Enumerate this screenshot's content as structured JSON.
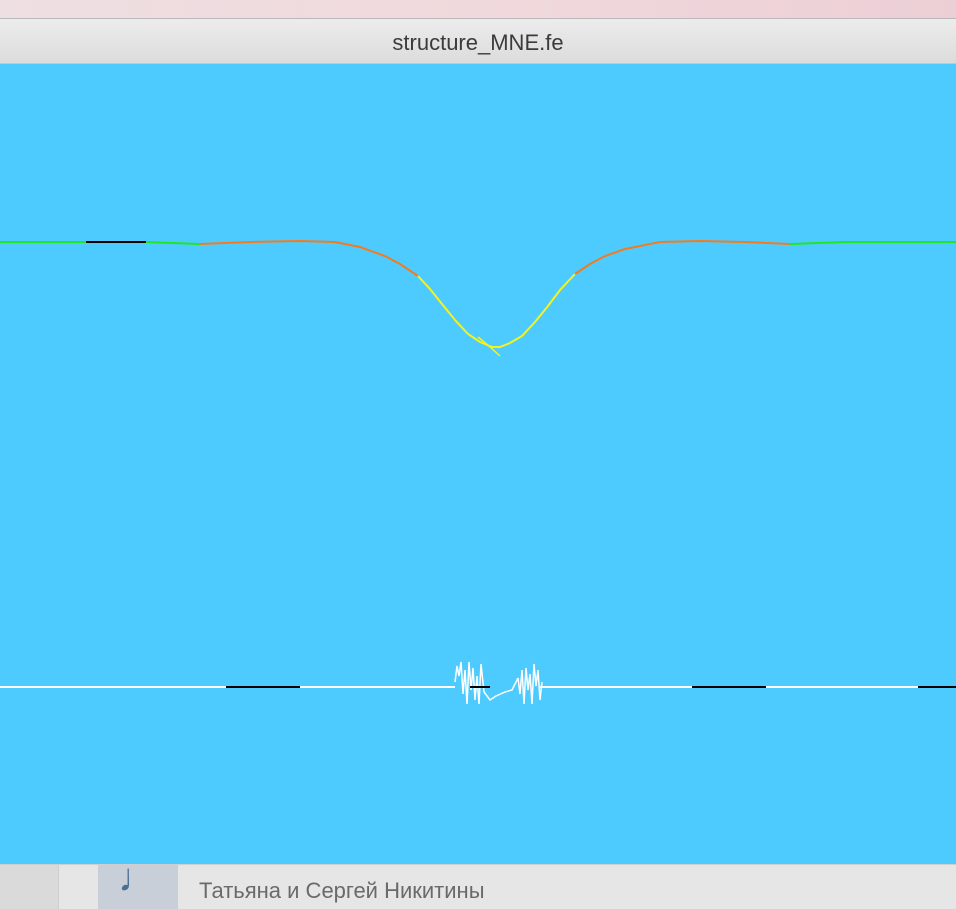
{
  "window": {
    "title": "structure_MNE.fe"
  },
  "canvas": {
    "background_color": "#4dcbff"
  },
  "background_app": {
    "track_title": "",
    "artist": "Татьяна и Сергей Никитины",
    "album_icon": "music-note-icon"
  },
  "colors": {
    "green": "#1ee81e",
    "orange": "#f27b20",
    "yellow": "#f7f21c",
    "black": "#000000",
    "white": "#ffffff"
  }
}
